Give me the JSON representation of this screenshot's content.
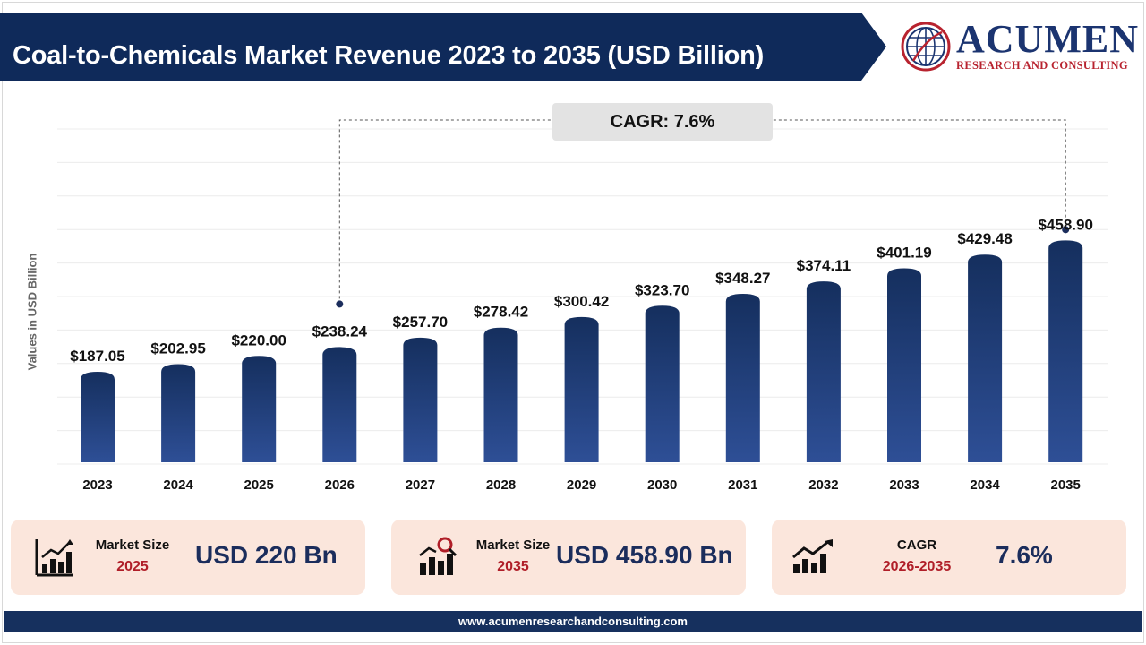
{
  "header": {
    "title": "Coal-to-Chemicals Market Revenue 2023 to 2035 (USD Billion)",
    "colors": {
      "banner": "#0f2a5a",
      "banner_light": "#1e4286"
    }
  },
  "logo": {
    "name": "ACUMEN",
    "tagline": "RESEARCH AND CONSULTING",
    "icon": "globe-logo-icon",
    "colors": {
      "blue": "#1b3470",
      "red": "#b8232f"
    }
  },
  "chart_data": {
    "type": "bar",
    "categories": [
      "2023",
      "2024",
      "2025",
      "2026",
      "2027",
      "2028",
      "2029",
      "2030",
      "2031",
      "2032",
      "2033",
      "2034",
      "2035"
    ],
    "values": [
      187.05,
      202.95,
      220.0,
      238.24,
      257.7,
      278.42,
      300.42,
      323.7,
      348.27,
      374.11,
      401.19,
      429.48,
      458.9
    ],
    "data_labels": [
      "$187.05",
      "$202.95",
      "$220.00",
      "$238.24",
      "$257.70",
      "$278.42",
      "$300.42",
      "$323.70",
      "$348.27",
      "$374.11",
      "$401.19",
      "$429.48",
      "$458.90"
    ],
    "title": "Coal-to-Chemicals Market Revenue 2023 to 2035 (USD Billion)",
    "xlabel": "",
    "ylabel": "Values in USD Billion",
    "grid": true,
    "annotation": {
      "text": "CAGR: 7.6%",
      "from": "2026",
      "to": "2035"
    },
    "colors": {
      "bar_top": "#152f5e",
      "bar_bottom": "#2e4f96",
      "gridline": "#ececec"
    }
  },
  "cards": [
    {
      "icon": "bar-chart-growth-icon",
      "label": "Market Size",
      "year": "2025",
      "value": "USD 220 Bn"
    },
    {
      "icon": "analytics-magnifier-icon",
      "label": "Market Size",
      "year": "2035",
      "value": "USD 458.90 Bn"
    },
    {
      "icon": "growth-trend-icon",
      "label": "CAGR",
      "year": "2026-2035",
      "value": "7.6%"
    }
  ],
  "footer": {
    "url": "www.acumenresearchandconsulting.com"
  }
}
